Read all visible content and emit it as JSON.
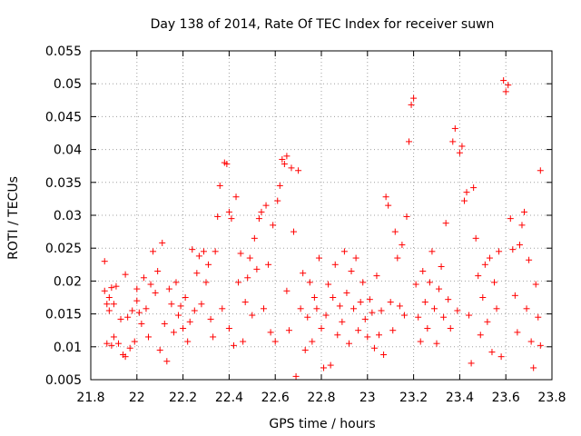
{
  "chart_data": {
    "type": "scatter",
    "title": "Day 138 of 2014, Rate Of TEC Index for receiver suwn",
    "xlabel": "GPS time / hours",
    "ylabel": "ROTI / TECUs",
    "xlim": [
      21.8,
      23.8
    ],
    "ylim": [
      0.005,
      0.055
    ],
    "xticks": [
      21.8,
      22.0,
      22.2,
      22.4,
      22.6,
      22.8,
      23.0,
      23.2,
      23.4,
      23.6,
      23.8
    ],
    "xtick_labels": [
      "21.8",
      "22",
      "22.2",
      "22.4",
      "22.6",
      "22.8",
      "23",
      "23.2",
      "23.4",
      "23.6",
      "23.8"
    ],
    "yticks": [
      0.005,
      0.01,
      0.015,
      0.02,
      0.025,
      0.03,
      0.035,
      0.04,
      0.045,
      0.05,
      0.055
    ],
    "ytick_labels": [
      "0.005",
      "0.01",
      "0.015",
      "0.02",
      "0.025",
      "0.03",
      "0.035",
      "0.04",
      "0.045",
      "0.05",
      "0.055"
    ],
    "grid": true,
    "marker": "+",
    "marker_color": "#ff0000",
    "series": [
      {
        "name": "ROTI",
        "points": [
          [
            21.86,
            0.023
          ],
          [
            21.86,
            0.0185
          ],
          [
            21.87,
            0.0165
          ],
          [
            21.87,
            0.0105
          ],
          [
            21.88,
            0.0175
          ],
          [
            21.88,
            0.0155
          ],
          [
            21.89,
            0.019
          ],
          [
            21.89,
            0.0102
          ],
          [
            21.9,
            0.0165
          ],
          [
            21.9,
            0.0115
          ],
          [
            21.91,
            0.0192
          ],
          [
            21.92,
            0.0105
          ],
          [
            21.93,
            0.0142
          ],
          [
            21.94,
            0.0088
          ],
          [
            21.95,
            0.0085
          ],
          [
            21.95,
            0.021
          ],
          [
            21.96,
            0.0145
          ],
          [
            21.97,
            0.0098
          ],
          [
            21.98,
            0.0155
          ],
          [
            21.99,
            0.0108
          ],
          [
            22.0,
            0.017
          ],
          [
            22.0,
            0.0188
          ],
          [
            22.01,
            0.0152
          ],
          [
            22.02,
            0.0135
          ],
          [
            22.03,
            0.0205
          ],
          [
            22.04,
            0.0158
          ],
          [
            22.05,
            0.0115
          ],
          [
            22.06,
            0.0195
          ],
          [
            22.07,
            0.0245
          ],
          [
            22.08,
            0.0182
          ],
          [
            22.09,
            0.0215
          ],
          [
            22.1,
            0.0095
          ],
          [
            22.11,
            0.0258
          ],
          [
            22.12,
            0.0135
          ],
          [
            22.13,
            0.0078
          ],
          [
            22.14,
            0.0188
          ],
          [
            22.15,
            0.0165
          ],
          [
            22.16,
            0.0122
          ],
          [
            22.17,
            0.0198
          ],
          [
            22.18,
            0.0148
          ],
          [
            22.19,
            0.0162
          ],
          [
            22.2,
            0.0128
          ],
          [
            22.21,
            0.0175
          ],
          [
            22.22,
            0.0108
          ],
          [
            22.23,
            0.0138
          ],
          [
            22.24,
            0.0248
          ],
          [
            22.25,
            0.0155
          ],
          [
            22.26,
            0.0212
          ],
          [
            22.27,
            0.0238
          ],
          [
            22.28,
            0.0165
          ],
          [
            22.29,
            0.0245
          ],
          [
            22.3,
            0.0198
          ],
          [
            22.31,
            0.0225
          ],
          [
            22.32,
            0.0142
          ],
          [
            22.33,
            0.0115
          ],
          [
            22.34,
            0.0245
          ],
          [
            22.35,
            0.0298
          ],
          [
            22.36,
            0.0345
          ],
          [
            22.37,
            0.0158
          ],
          [
            22.38,
            0.038
          ],
          [
            22.39,
            0.0378
          ],
          [
            22.4,
            0.0128
          ],
          [
            22.4,
            0.0305
          ],
          [
            22.41,
            0.0295
          ],
          [
            22.42,
            0.0102
          ],
          [
            22.43,
            0.0328
          ],
          [
            22.44,
            0.0198
          ],
          [
            22.45,
            0.0242
          ],
          [
            22.46,
            0.0108
          ],
          [
            22.47,
            0.0168
          ],
          [
            22.48,
            0.0205
          ],
          [
            22.49,
            0.0235
          ],
          [
            22.5,
            0.0148
          ],
          [
            22.51,
            0.0265
          ],
          [
            22.52,
            0.0218
          ],
          [
            22.53,
            0.0295
          ],
          [
            22.54,
            0.0305
          ],
          [
            22.55,
            0.0158
          ],
          [
            22.56,
            0.0315
          ],
          [
            22.57,
            0.0225
          ],
          [
            22.58,
            0.0122
          ],
          [
            22.59,
            0.0285
          ],
          [
            22.6,
            0.0108
          ],
          [
            22.61,
            0.0322
          ],
          [
            22.62,
            0.0345
          ],
          [
            22.63,
            0.0385
          ],
          [
            22.64,
            0.0378
          ],
          [
            22.65,
            0.039
          ],
          [
            22.65,
            0.0185
          ],
          [
            22.66,
            0.0125
          ],
          [
            22.67,
            0.0372
          ],
          [
            22.68,
            0.0275
          ],
          [
            22.69,
            0.0055
          ],
          [
            22.7,
            0.0368
          ],
          [
            22.71,
            0.0158
          ],
          [
            22.72,
            0.0212
          ],
          [
            22.73,
            0.0095
          ],
          [
            22.74,
            0.0145
          ],
          [
            22.75,
            0.0198
          ],
          [
            22.76,
            0.0108
          ],
          [
            22.77,
            0.0175
          ],
          [
            22.78,
            0.0158
          ],
          [
            22.79,
            0.0235
          ],
          [
            22.8,
            0.0128
          ],
          [
            22.81,
            0.0068
          ],
          [
            22.82,
            0.0148
          ],
          [
            22.83,
            0.0195
          ],
          [
            22.84,
            0.0072
          ],
          [
            22.85,
            0.0175
          ],
          [
            22.86,
            0.0225
          ],
          [
            22.87,
            0.0118
          ],
          [
            22.88,
            0.0162
          ],
          [
            22.89,
            0.0138
          ],
          [
            22.9,
            0.0245
          ],
          [
            22.91,
            0.0182
          ],
          [
            22.92,
            0.0105
          ],
          [
            22.93,
            0.0215
          ],
          [
            22.94,
            0.0158
          ],
          [
            22.95,
            0.0235
          ],
          [
            22.96,
            0.0125
          ],
          [
            22.97,
            0.0168
          ],
          [
            22.98,
            0.0198
          ],
          [
            22.99,
            0.0142
          ],
          [
            23.0,
            0.0115
          ],
          [
            23.01,
            0.0172
          ],
          [
            23.02,
            0.0152
          ],
          [
            23.03,
            0.0098
          ],
          [
            23.04,
            0.0208
          ],
          [
            23.05,
            0.0118
          ],
          [
            23.06,
            0.0155
          ],
          [
            23.07,
            0.0088
          ],
          [
            23.08,
            0.0328
          ],
          [
            23.09,
            0.0315
          ],
          [
            23.1,
            0.0168
          ],
          [
            23.11,
            0.0125
          ],
          [
            23.12,
            0.0275
          ],
          [
            23.13,
            0.0235
          ],
          [
            23.14,
            0.0162
          ],
          [
            23.15,
            0.0255
          ],
          [
            23.16,
            0.0148
          ],
          [
            23.17,
            0.0298
          ],
          [
            23.18,
            0.0412
          ],
          [
            23.19,
            0.0468
          ],
          [
            23.2,
            0.0478
          ],
          [
            23.21,
            0.0195
          ],
          [
            23.22,
            0.0145
          ],
          [
            23.23,
            0.0108
          ],
          [
            23.24,
            0.0215
          ],
          [
            23.25,
            0.0168
          ],
          [
            23.26,
            0.0128
          ],
          [
            23.27,
            0.0198
          ],
          [
            23.28,
            0.0245
          ],
          [
            23.29,
            0.0158
          ],
          [
            23.3,
            0.0105
          ],
          [
            23.31,
            0.0188
          ],
          [
            23.32,
            0.0222
          ],
          [
            23.33,
            0.0145
          ],
          [
            23.34,
            0.0288
          ],
          [
            23.35,
            0.0172
          ],
          [
            23.36,
            0.0128
          ],
          [
            23.37,
            0.0412
          ],
          [
            23.38,
            0.0432
          ],
          [
            23.39,
            0.0155
          ],
          [
            23.4,
            0.0395
          ],
          [
            23.41,
            0.0405
          ],
          [
            23.42,
            0.0322
          ],
          [
            23.43,
            0.0335
          ],
          [
            23.44,
            0.0148
          ],
          [
            23.45,
            0.0075
          ],
          [
            23.46,
            0.0342
          ],
          [
            23.47,
            0.0265
          ],
          [
            23.48,
            0.0208
          ],
          [
            23.49,
            0.0118
          ],
          [
            23.5,
            0.0175
          ],
          [
            23.51,
            0.0225
          ],
          [
            23.52,
            0.0138
          ],
          [
            23.53,
            0.0235
          ],
          [
            23.54,
            0.0092
          ],
          [
            23.55,
            0.0198
          ],
          [
            23.56,
            0.0158
          ],
          [
            23.57,
            0.0245
          ],
          [
            23.58,
            0.0085
          ],
          [
            23.59,
            0.0505
          ],
          [
            23.6,
            0.0488
          ],
          [
            23.61,
            0.0498
          ],
          [
            23.62,
            0.0295
          ],
          [
            23.63,
            0.0248
          ],
          [
            23.64,
            0.0178
          ],
          [
            23.65,
            0.0122
          ],
          [
            23.66,
            0.0255
          ],
          [
            23.67,
            0.0285
          ],
          [
            23.68,
            0.0305
          ],
          [
            23.69,
            0.0158
          ],
          [
            23.7,
            0.0232
          ],
          [
            23.71,
            0.0108
          ],
          [
            23.72,
            0.0068
          ],
          [
            23.73,
            0.0195
          ],
          [
            23.74,
            0.0145
          ],
          [
            23.75,
            0.0368
          ],
          [
            23.75,
            0.0102
          ]
        ]
      }
    ]
  }
}
